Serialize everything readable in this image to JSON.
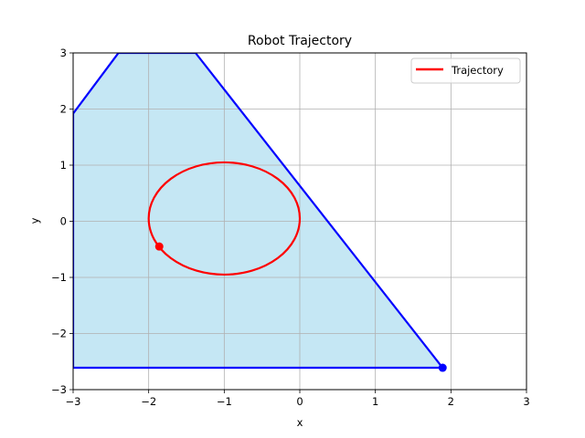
{
  "chart_data": {
    "type": "line",
    "title": "Robot Trajectory",
    "xlabel": "x",
    "ylabel": "y",
    "xlim": [
      -3,
      3
    ],
    "ylim": [
      -3,
      3
    ],
    "x_ticks": [
      -3,
      -2,
      -1,
      0,
      1,
      2,
      3
    ],
    "y_ticks": [
      -3,
      -2,
      -1,
      0,
      1,
      2,
      3
    ],
    "x_tick_labels": [
      "−3",
      "−2",
      "−1",
      "0",
      "1",
      "2",
      "3"
    ],
    "y_tick_labels": [
      "−3",
      "−2",
      "−1",
      "0",
      "1",
      "2",
      "3"
    ],
    "grid": true,
    "legend": {
      "position": "upper right",
      "entries": [
        "Trajectory"
      ]
    },
    "region": {
      "fill_color": "#c5e7f4",
      "edge_color": "#0000ff",
      "vertices": [
        [
          1.89,
          -2.61
        ],
        [
          -3.0,
          -2.61
        ],
        [
          -3.0,
          1.92
        ],
        [
          -2.4,
          3.0
        ],
        [
          -1.38,
          3.0
        ],
        [
          1.89,
          -2.61
        ]
      ]
    },
    "region_marker": {
      "x": 1.89,
      "y": -2.61,
      "color": "#0000ff"
    },
    "series": [
      {
        "name": "Trajectory",
        "color": "#ff0000",
        "shape": "circle",
        "center": [
          -1.0,
          0.05
        ],
        "radius_x": 1.0,
        "radius_y": 1.0,
        "start_point": [
          -1.86,
          -0.45
        ]
      }
    ],
    "trajectory_marker": {
      "x": -1.86,
      "y": -0.45,
      "color": "#ff0000"
    }
  }
}
